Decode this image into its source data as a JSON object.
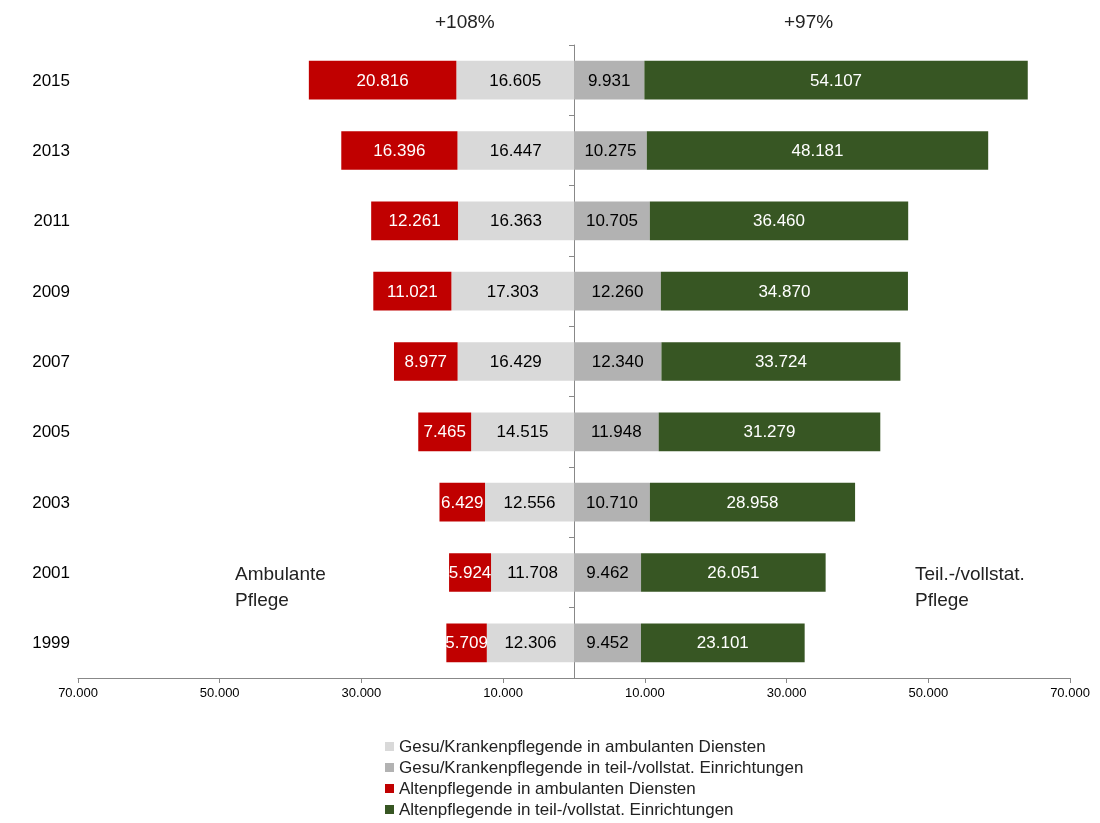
{
  "chart_data": {
    "type": "bar",
    "orientation": "horizontal",
    "categories": [
      "2015",
      "2013",
      "2011",
      "2009",
      "2007",
      "2005",
      "2003",
      "2001",
      "1999"
    ],
    "series": [
      {
        "name": "Gesu/Krankenpflegende in ambulanten Diensten",
        "color": "#d9d9d9",
        "values": [
          16605,
          16447,
          16363,
          17303,
          16429,
          14515,
          12556,
          11708,
          12306
        ],
        "base": [
          -16605,
          -16447,
          -16363,
          -17303,
          -16429,
          -14515,
          -12556,
          -11708,
          -12306
        ],
        "value_labels": [
          "16.605",
          "16.447",
          "16.363",
          "17.303",
          "16.429",
          "14.515",
          "12.556",
          "11.708",
          "12.306"
        ]
      },
      {
        "name": "Gesu/Krankenpflegende in teil-/vollstat. Einrichtungen",
        "color": "#b2b2b2",
        "values": [
          9931,
          10275,
          10705,
          12260,
          12340,
          11948,
          10710,
          9462,
          9452
        ],
        "base": [
          0,
          0,
          0,
          0,
          0,
          0,
          0,
          0,
          0
        ],
        "value_labels": [
          "9.931",
          "10.275",
          "10.705",
          "12.260",
          "12.340",
          "11.948",
          "10.710",
          "9.462",
          "9.452"
        ]
      },
      {
        "name": "Altenpflegende in ambulanten Diensten",
        "color": "#c00000",
        "values": [
          20816,
          16396,
          12261,
          11021,
          8977,
          7465,
          6429,
          5924,
          5709
        ],
        "base": [
          -37421,
          -32843,
          -28624,
          -28324,
          -25406,
          -21980,
          -18985,
          -17632,
          -18015
        ],
        "value_labels": [
          "20.816",
          "16.396",
          "12.261",
          "11.021",
          "8.977",
          "7.465",
          "6.429",
          "5.924",
          "5.709"
        ]
      },
      {
        "name": "Altenpflegende in teil-/vollstat. Einrichtungen",
        "color": "#375623",
        "values": [
          54107,
          48181,
          36460,
          34870,
          33724,
          31279,
          28958,
          26051,
          23101
        ],
        "base": [
          9931,
          10275,
          10705,
          12260,
          12340,
          11948,
          10710,
          9462,
          9452
        ],
        "value_labels": [
          "54.107",
          "48.181",
          "36.460",
          "34.870",
          "33.724",
          "31.279",
          "28.958",
          "26.051",
          "23.101"
        ]
      }
    ],
    "xlim": [
      -70000,
      70000
    ],
    "xticks": [
      {
        "value": -70000,
        "label": "70.000"
      },
      {
        "value": -50000,
        "label": "50.000"
      },
      {
        "value": -30000,
        "label": "30.000"
      },
      {
        "value": -10000,
        "label": "10.000"
      },
      {
        "value": 10000,
        "label": "10.000"
      },
      {
        "value": 30000,
        "label": "30.000"
      },
      {
        "value": 50000,
        "label": "50.000"
      },
      {
        "value": 70000,
        "label": "70.000"
      }
    ],
    "annotations": [
      "+108%",
      "+97%",
      "Ambulante\nPflege",
      "Teil.-/vollstat.\nPflege"
    ],
    "grid": false,
    "legend": "bottom"
  }
}
